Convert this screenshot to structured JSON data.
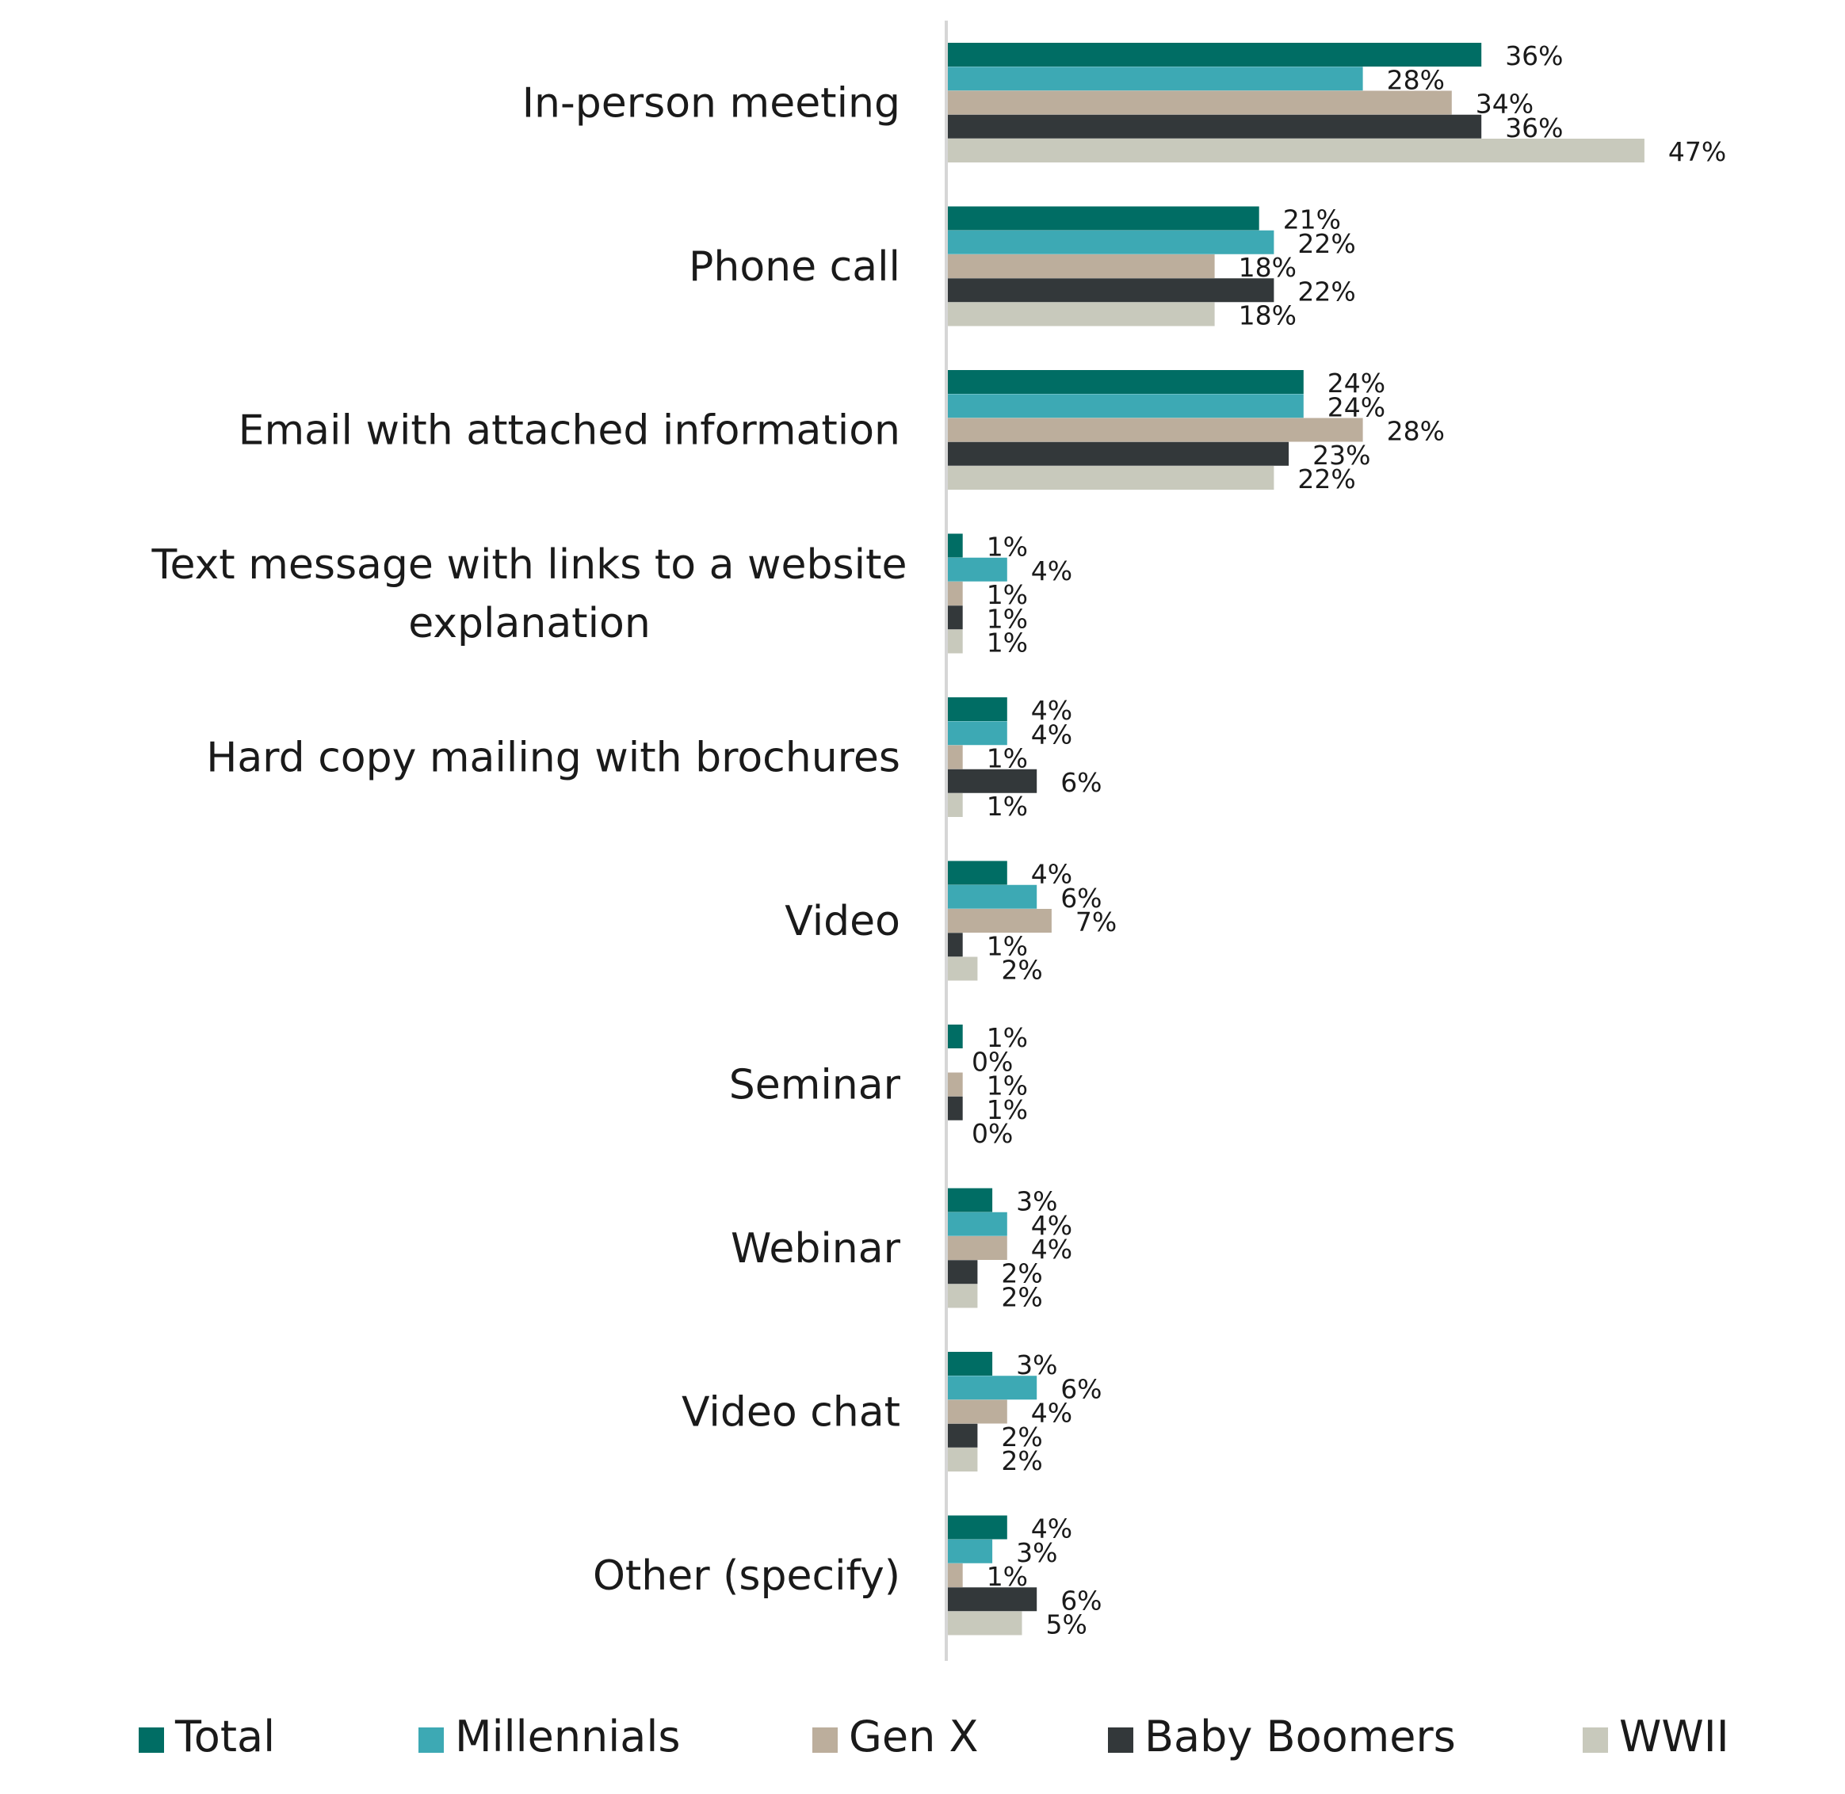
{
  "chart_data": {
    "type": "bar",
    "orientation": "horizontal",
    "categories": [
      "In-person meeting",
      "Phone call",
      "Email with attached information",
      "Text message with links to a website explanation",
      "Hard copy mailing with brochures",
      "Video",
      "Seminar",
      "Webinar",
      "Video chat",
      "Other (specify)"
    ],
    "series": [
      {
        "name": "Total",
        "color": "#006D64",
        "values": [
          36,
          21,
          24,
          1,
          4,
          4,
          1,
          3,
          3,
          4
        ]
      },
      {
        "name": "Millennials",
        "color": "#3DA9B4",
        "values": [
          28,
          22,
          24,
          4,
          4,
          6,
          0,
          4,
          6,
          3
        ]
      },
      {
        "name": "Gen X",
        "color": "#BCAE9C",
        "values": [
          34,
          18,
          28,
          1,
          1,
          7,
          1,
          4,
          4,
          1
        ]
      },
      {
        "name": "Baby Boomers",
        "color": "#33383A",
        "values": [
          36,
          22,
          23,
          1,
          6,
          1,
          1,
          2,
          2,
          6
        ]
      },
      {
        "name": "WWII",
        "color": "#C8C9BC",
        "values": [
          47,
          18,
          22,
          1,
          1,
          2,
          0,
          2,
          2,
          5
        ]
      }
    ],
    "value_suffix": "%",
    "legend_position": "bottom",
    "grid": false,
    "title": "",
    "xlabel": "",
    "ylabel": ""
  }
}
